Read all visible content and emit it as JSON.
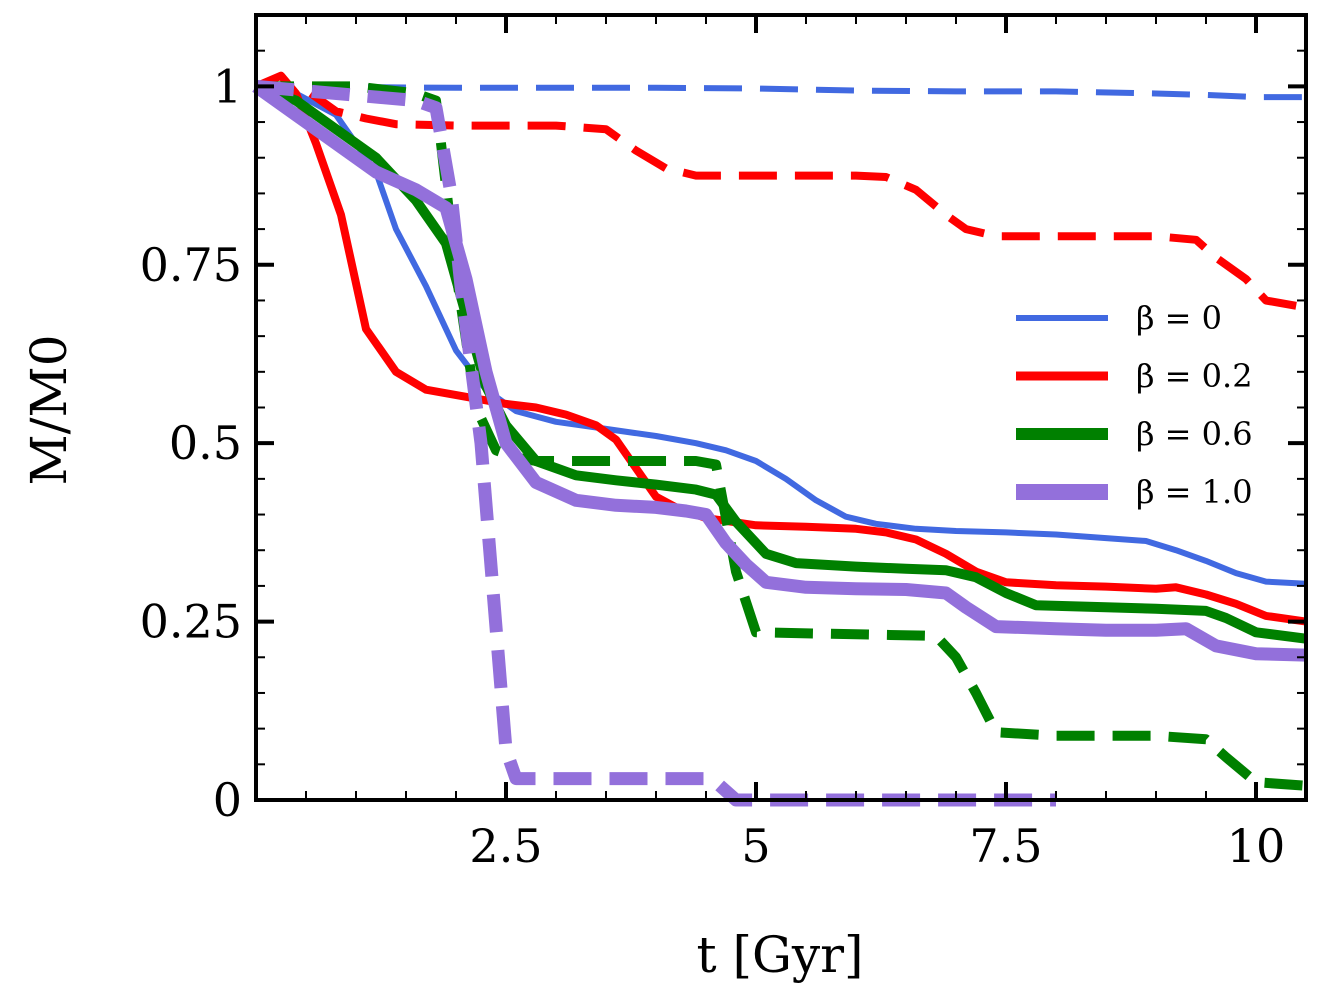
{
  "chart_data": {
    "type": "line",
    "title": "",
    "xlabel": "t [Gyr]",
    "ylabel": "M/M0",
    "xlim": [
      0,
      10.5
    ],
    "ylim": [
      0,
      1.1
    ],
    "xticks": [
      2.5,
      5,
      7.5,
      10
    ],
    "xtick_labels": [
      "2.5",
      "5",
      "7.5",
      "10"
    ],
    "yticks": [
      0,
      0.25,
      0.5,
      0.75,
      1
    ],
    "ytick_labels": [
      "0",
      "0.25",
      "0.5",
      "0.75",
      "1"
    ],
    "grid": false,
    "legend_position": "center-right",
    "legend": [
      {
        "label": "β = 0",
        "color": "#4169e1"
      },
      {
        "label": "β = 0.2",
        "color": "#ff0000"
      },
      {
        "label": "β = 0.6",
        "color": "#008000"
      },
      {
        "label": "β = 1.0",
        "color": "#9370db"
      }
    ],
    "series": [
      {
        "name": "β = 0 (solid)",
        "beta": "0",
        "style": "solid",
        "color": "#4169e1",
        "x": [
          0,
          0.4,
          0.8,
          1.0,
          1.2,
          1.4,
          1.7,
          2.0,
          2.3,
          2.6,
          3.0,
          3.5,
          4.0,
          4.4,
          4.7,
          5.0,
          5.3,
          5.6,
          5.9,
          6.2,
          6.6,
          7.0,
          7.5,
          8.0,
          8.5,
          8.9,
          9.2,
          9.5,
          9.8,
          10.1,
          10.5
        ],
        "y": [
          1.0,
          0.99,
          0.96,
          0.92,
          0.88,
          0.8,
          0.72,
          0.63,
          0.575,
          0.545,
          0.53,
          0.52,
          0.51,
          0.5,
          0.49,
          0.475,
          0.45,
          0.42,
          0.397,
          0.387,
          0.38,
          0.377,
          0.375,
          0.372,
          0.367,
          0.363,
          0.35,
          0.335,
          0.318,
          0.306,
          0.303
        ]
      },
      {
        "name": "β = 0 (dashed)",
        "beta": "0",
        "style": "dashed",
        "color": "#4169e1",
        "x": [
          0,
          2.0,
          4.0,
          5.0,
          6.0,
          7.0,
          8.0,
          9.0,
          9.5,
          10.0,
          10.5
        ],
        "y": [
          1.0,
          0.998,
          0.998,
          0.997,
          0.994,
          0.993,
          0.993,
          0.99,
          0.988,
          0.985,
          0.985
        ]
      },
      {
        "name": "β = 0.2 (solid)",
        "beta": "0.2",
        "style": "solid",
        "color": "#ff0000",
        "x": [
          0,
          0.25,
          0.4,
          0.6,
          0.85,
          1.1,
          1.4,
          1.7,
          2.1,
          2.5,
          2.8,
          3.1,
          3.4,
          3.6,
          3.8,
          4.0,
          4.2,
          4.5,
          5.0,
          5.5,
          6.0,
          6.3,
          6.6,
          6.9,
          7.2,
          7.5,
          8.0,
          8.5,
          9.0,
          9.2,
          9.5,
          9.8,
          10.1,
          10.5
        ],
        "y": [
          1.0,
          1.015,
          0.99,
          0.92,
          0.82,
          0.66,
          0.6,
          0.575,
          0.565,
          0.555,
          0.55,
          0.54,
          0.525,
          0.505,
          0.465,
          0.425,
          0.41,
          0.395,
          0.385,
          0.383,
          0.38,
          0.375,
          0.365,
          0.345,
          0.32,
          0.305,
          0.301,
          0.299,
          0.296,
          0.298,
          0.288,
          0.275,
          0.258,
          0.25
        ]
      },
      {
        "name": "β = 0.2 (dashed)",
        "beta": "0.2",
        "style": "dashed",
        "color": "#ff0000",
        "x": [
          0,
          0.5,
          0.8,
          1.1,
          1.4,
          2.0,
          3.0,
          3.5,
          3.8,
          4.1,
          4.4,
          5.0,
          6.0,
          6.3,
          6.6,
          6.9,
          7.1,
          7.4,
          8.0,
          9.0,
          9.4,
          9.6,
          9.9,
          10.1,
          10.5
        ],
        "y": [
          1.0,
          0.995,
          0.965,
          0.955,
          0.947,
          0.945,
          0.945,
          0.94,
          0.91,
          0.885,
          0.875,
          0.875,
          0.875,
          0.873,
          0.855,
          0.82,
          0.8,
          0.79,
          0.79,
          0.79,
          0.785,
          0.76,
          0.73,
          0.7,
          0.69
        ]
      },
      {
        "name": "β = 0.6 (solid)",
        "beta": "0.6",
        "style": "solid",
        "color": "#008000",
        "x": [
          0,
          0.4,
          0.8,
          1.2,
          1.6,
          1.9,
          2.1,
          2.3,
          2.5,
          2.8,
          3.2,
          3.6,
          4.0,
          4.4,
          4.6,
          4.8,
          5.1,
          5.4,
          6.0,
          6.5,
          6.9,
          7.2,
          7.5,
          7.8,
          8.5,
          9.0,
          9.5,
          9.7,
          10.0,
          10.5
        ],
        "y": [
          1.0,
          0.98,
          0.94,
          0.9,
          0.84,
          0.78,
          0.68,
          0.58,
          0.525,
          0.475,
          0.455,
          0.448,
          0.442,
          0.435,
          0.428,
          0.39,
          0.345,
          0.332,
          0.327,
          0.324,
          0.322,
          0.312,
          0.29,
          0.273,
          0.27,
          0.268,
          0.265,
          0.255,
          0.235,
          0.226
        ]
      },
      {
        "name": "β = 0.6 (dashed)",
        "beta": "0.6",
        "style": "dashed",
        "color": "#008000",
        "x": [
          0,
          1.0,
          1.6,
          1.8,
          2.0,
          2.2,
          2.4,
          2.6,
          2.8,
          3.5,
          4.4,
          4.6,
          4.8,
          5.0,
          6.8,
          7.0,
          7.2,
          7.4,
          8.0,
          9.0,
          9.5,
          9.7,
          10.0,
          10.5
        ],
        "y": [
          1.0,
          1.0,
          0.99,
          0.98,
          0.74,
          0.55,
          0.49,
          0.48,
          0.475,
          0.475,
          0.475,
          0.47,
          0.32,
          0.235,
          0.23,
          0.2,
          0.15,
          0.095,
          0.09,
          0.09,
          0.085,
          0.06,
          0.025,
          0.02
        ]
      },
      {
        "name": "β = 1.0 (solid)",
        "beta": "1.0",
        "style": "solid",
        "color": "#9370db",
        "x": [
          0,
          0.4,
          0.8,
          1.2,
          1.6,
          1.9,
          2.1,
          2.3,
          2.5,
          2.8,
          3.2,
          3.6,
          4.0,
          4.3,
          4.5,
          4.7,
          4.9,
          5.1,
          5.5,
          6.0,
          6.5,
          6.9,
          7.1,
          7.4,
          8.0,
          8.5,
          9.0,
          9.3,
          9.6,
          10.0,
          10.5
        ],
        "y": [
          1.0,
          0.96,
          0.92,
          0.88,
          0.855,
          0.83,
          0.73,
          0.6,
          0.5,
          0.445,
          0.42,
          0.413,
          0.41,
          0.405,
          0.4,
          0.36,
          0.33,
          0.305,
          0.298,
          0.296,
          0.295,
          0.29,
          0.27,
          0.243,
          0.24,
          0.238,
          0.238,
          0.24,
          0.216,
          0.205,
          0.203
        ]
      },
      {
        "name": "β = 1.0 (dashed)",
        "beta": "1.0",
        "style": "dashed",
        "color": "#9370db",
        "x": [
          0,
          1.6,
          1.8,
          1.95,
          2.05,
          2.25,
          2.5,
          2.6,
          4.5,
          4.6,
          4.8,
          8.0
        ],
        "y": [
          1.0,
          0.98,
          0.97,
          0.85,
          0.72,
          0.5,
          0.07,
          0.03,
          0.03,
          0.025,
          0.0,
          0.0
        ]
      }
    ]
  }
}
